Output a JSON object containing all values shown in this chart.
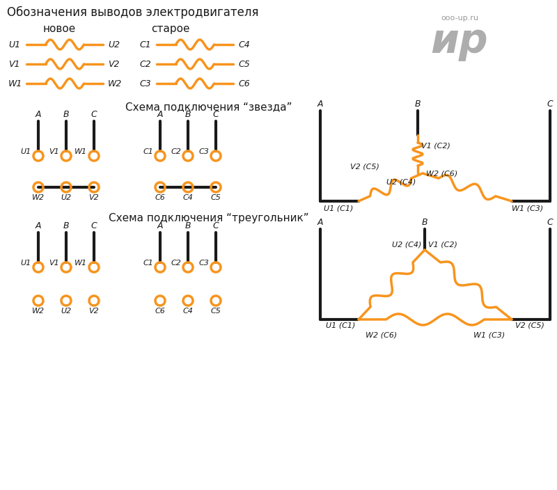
{
  "title": "Обозначения выводов электродвигателя",
  "new_label": "новое",
  "old_label": "старое",
  "star_title": "Схема подключения “звезда”",
  "triangle_title": "Схема подключения “треугольник”",
  "orange": "#F7941D",
  "black": "#1a1a1a",
  "gray": "#999999",
  "bg": "#FFFFFF",
  "watermark": "ир",
  "watermark_sub": "ooo-up.ru"
}
